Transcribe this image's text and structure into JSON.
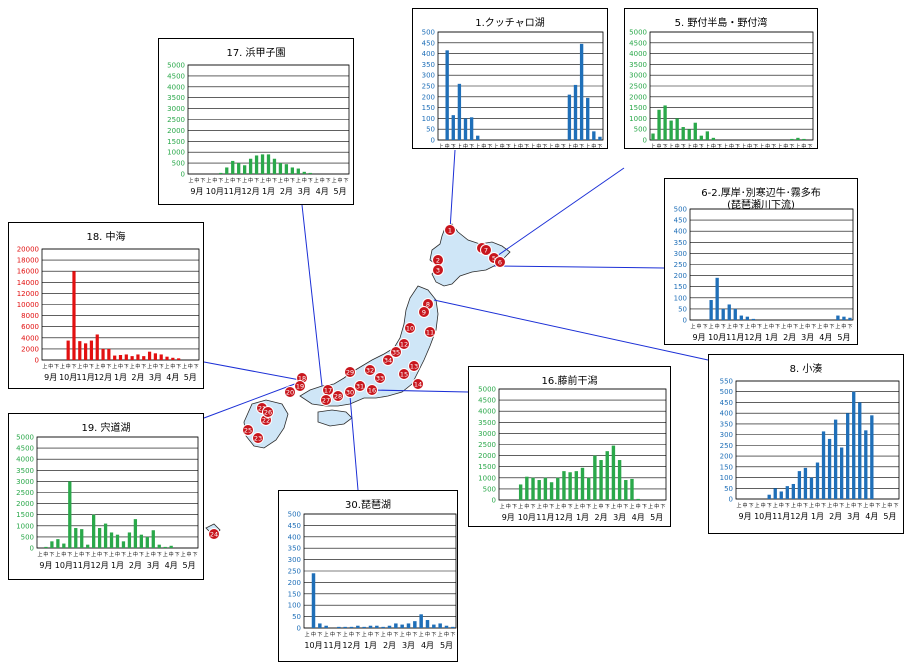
{
  "colors": {
    "blue": "#1f6fb8",
    "green": "#2aa84a",
    "red": "#e21010",
    "japan": "#cfe6f7",
    "marker": "#c8161d",
    "connector": "#1b2fd6"
  },
  "tick_letters": [
    "上",
    "中",
    "下"
  ],
  "chart_data": [
    {
      "id": "kuccharo",
      "type": "bar",
      "title": "1.クッチャロ湖",
      "subtitle": "",
      "yticks": [
        "500",
        "450",
        "400",
        "350",
        "300",
        "250",
        "200",
        "150",
        "100",
        "50",
        "0"
      ],
      "ylim": [
        0,
        500
      ],
      "months": [
        "9月",
        "10月",
        "11月",
        "12月",
        "1月",
        "2月",
        "3月",
        "4月",
        "5月"
      ],
      "values": [
        0,
        415,
        115,
        260,
        100,
        105,
        20,
        0,
        0,
        0,
        0,
        0,
        0,
        0,
        0,
        0,
        0,
        0,
        0,
        0,
        0,
        210,
        255,
        445,
        195,
        40,
        15
      ],
      "color": "blue"
    },
    {
      "id": "notsuke",
      "type": "bar",
      "title": "5. 野付半島・野付湾",
      "subtitle": "",
      "yticks": [
        "5000",
        "4500",
        "4000",
        "3500",
        "3000",
        "2500",
        "2000",
        "1500",
        "1000",
        "500",
        "0"
      ],
      "ylim": [
        0,
        5000
      ],
      "months": [
        "9月",
        "10月",
        "11月",
        "12月",
        "1月",
        "2月",
        "3月",
        "4月",
        "5月"
      ],
      "values": [
        300,
        1400,
        1600,
        900,
        1000,
        600,
        500,
        800,
        200,
        400,
        100,
        0,
        0,
        0,
        0,
        0,
        0,
        0,
        0,
        0,
        0,
        0,
        0,
        50,
        100,
        50,
        0
      ],
      "color": "green"
    },
    {
      "id": "akkeshi",
      "type": "bar",
      "title": "6-2.厚岸･別寒辺牛･霧多布",
      "subtitle": "(琵琶瀬川下流)",
      "yticks": [
        "500",
        "450",
        "400",
        "350",
        "300",
        "250",
        "200",
        "150",
        "100",
        "50",
        "0"
      ],
      "ylim": [
        0,
        500
      ],
      "months": [
        "9月",
        "10月",
        "11月",
        "12月",
        "1月",
        "2月",
        "3月",
        "4月",
        "5月"
      ],
      "values": [
        0,
        0,
        0,
        90,
        190,
        50,
        70,
        50,
        20,
        15,
        5,
        0,
        0,
        0,
        0,
        0,
        0,
        0,
        0,
        0,
        0,
        0,
        0,
        0,
        20,
        15,
        10
      ],
      "color": "blue"
    },
    {
      "id": "kominato",
      "type": "bar",
      "title": "8. 小湊",
      "subtitle": "",
      "yticks": [
        "550",
        "500",
        "450",
        "400",
        "350",
        "300",
        "250",
        "200",
        "150",
        "100",
        "50",
        "0"
      ],
      "ylim": [
        0,
        550
      ],
      "months": [
        "9月",
        "10月",
        "11月",
        "12月",
        "1月",
        "2月",
        "3月",
        "4月",
        "5月"
      ],
      "values": [
        0,
        0,
        0,
        0,
        0,
        20,
        50,
        35,
        60,
        70,
        130,
        145,
        100,
        170,
        315,
        280,
        370,
        240,
        400,
        500,
        450,
        320,
        390,
        0,
        0,
        0,
        0
      ],
      "color": "blue"
    },
    {
      "id": "fujimae",
      "type": "bar",
      "title": "16.藤前干潟",
      "subtitle": "",
      "yticks": [
        "5000",
        "4500",
        "4000",
        "3500",
        "3000",
        "2500",
        "2000",
        "1500",
        "1000",
        "500",
        "0"
      ],
      "ylim": [
        0,
        5000
      ],
      "months": [
        "9月",
        "10月",
        "11月",
        "12月",
        "1月",
        "2月",
        "3月",
        "4月",
        "5月"
      ],
      "values": [
        0,
        0,
        0,
        700,
        1050,
        1000,
        900,
        1000,
        800,
        1000,
        1300,
        1250,
        1300,
        1450,
        1000,
        2000,
        1800,
        2200,
        2450,
        1800,
        900,
        950,
        50,
        0,
        0,
        0,
        0
      ],
      "color": "green"
    },
    {
      "id": "biwa",
      "type": "bar",
      "title": "30.琵琶湖",
      "subtitle": "",
      "yticks": [
        "500",
        "450",
        "400",
        "350",
        "300",
        "250",
        "200",
        "150",
        "100",
        "50",
        "0"
      ],
      "ylim": [
        0,
        500
      ],
      "months": [
        "10月",
        "11月",
        "12月",
        "1月",
        "2月",
        "3月",
        "4月",
        "5月"
      ],
      "values": [
        0,
        240,
        20,
        10,
        0,
        5,
        5,
        5,
        10,
        5,
        10,
        10,
        5,
        10,
        20,
        15,
        20,
        30,
        60,
        35,
        15,
        20,
        10,
        5
      ],
      "color": "blue"
    },
    {
      "id": "shinji",
      "type": "bar",
      "title": "19. 宍道湖",
      "subtitle": "",
      "yticks": [
        "5000",
        "4500",
        "4000",
        "3500",
        "3000",
        "2500",
        "2000",
        "1500",
        "1000",
        "500",
        "0"
      ],
      "ylim": [
        0,
        5000
      ],
      "months": [
        "9月",
        "10月",
        "11月",
        "12月",
        "1月",
        "2月",
        "3月",
        "4月",
        "5月"
      ],
      "values": [
        0,
        50,
        300,
        400,
        200,
        3000,
        900,
        850,
        150,
        1500,
        900,
        1100,
        700,
        600,
        300,
        700,
        1300,
        600,
        500,
        800,
        150,
        50,
        100,
        0,
        0,
        0,
        0
      ],
      "color": "green"
    },
    {
      "id": "nakaumi",
      "type": "bar",
      "title": "18. 中海",
      "subtitle": "",
      "yticks": [
        "20000",
        "18000",
        "16000",
        "14000",
        "12000",
        "10000",
        "8000",
        "6000",
        "4000",
        "2000",
        "0"
      ],
      "ylim": [
        0,
        20000
      ],
      "months": [
        "9月",
        "10月",
        "11月",
        "12月",
        "1月",
        "2月",
        "3月",
        "4月",
        "5月"
      ],
      "values": [
        0,
        0,
        0,
        0,
        3500,
        16000,
        3400,
        3000,
        3500,
        4600,
        2000,
        2000,
        800,
        900,
        1000,
        700,
        1000,
        700,
        1500,
        1200,
        1000,
        600,
        400,
        300,
        0,
        0,
        0
      ],
      "color": "red"
    },
    {
      "id": "hamakoshien",
      "type": "bar",
      "title": "17. 浜甲子園",
      "subtitle": "",
      "yticks": [
        "5000",
        "4500",
        "4000",
        "3500",
        "3000",
        "2500",
        "2000",
        "1500",
        "1000",
        "500",
        "0"
      ],
      "ylim": [
        0,
        5000
      ],
      "months": [
        "9月",
        "10月",
        "11月",
        "12月",
        "1月",
        "2月",
        "3月",
        "4月",
        "5月"
      ],
      "values": [
        0,
        0,
        0,
        0,
        0,
        50,
        300,
        600,
        500,
        400,
        700,
        850,
        900,
        900,
        700,
        500,
        450,
        300,
        250,
        100,
        50,
        0,
        0,
        0,
        0,
        0,
        0
      ],
      "color": "green"
    }
  ],
  "map": {
    "markers": [
      "1",
      "2",
      "3",
      "4",
      "5",
      "6",
      "7",
      "8",
      "9",
      "10",
      "11",
      "12",
      "13",
      "14",
      "15",
      "16",
      "17",
      "18",
      "19",
      "20",
      "21",
      "22",
      "23",
      "24",
      "25",
      "26",
      "27",
      "28",
      "29",
      "30",
      "31",
      "32",
      "33",
      "34",
      "35"
    ]
  }
}
